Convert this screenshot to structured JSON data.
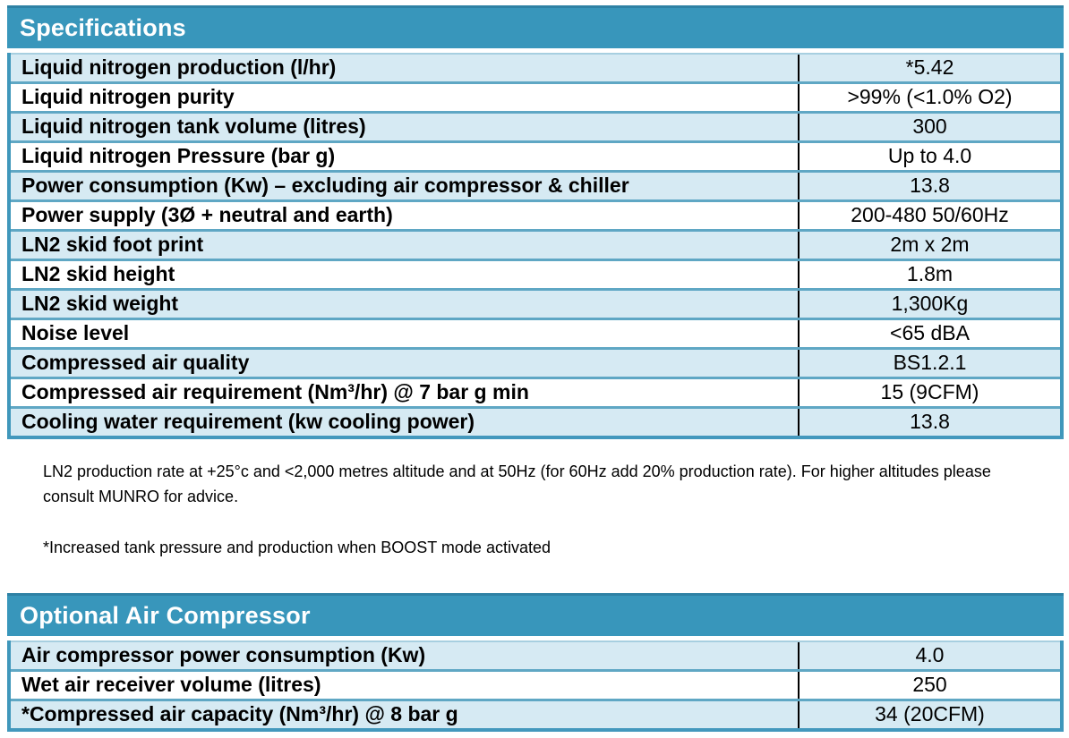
{
  "colors": {
    "header_bg": "#3896bb",
    "header_top_edge": "#2e81a4",
    "row_alt_bg": "#d6eaf3",
    "row_bg": "#ffffff",
    "row_border": "#5fa7c4",
    "outer_border": "#3f97bb",
    "column_divider": "#000000",
    "header_text": "#ffffff",
    "body_text": "#000000"
  },
  "spec_table": {
    "title": "Specifications",
    "rows": [
      {
        "label": "Liquid nitrogen production (l/hr)",
        "value": "*5.42"
      },
      {
        "label": "Liquid nitrogen purity",
        "value": ">99% (<1.0% O2)"
      },
      {
        "label": "Liquid nitrogen tank volume (litres)",
        "value": "300"
      },
      {
        "label": "Liquid nitrogen Pressure (bar g)",
        "value": "Up to 4.0"
      },
      {
        "label": "Power consumption (Kw) – excluding air compressor & chiller",
        "value": "13.8"
      },
      {
        "label": "Power supply (3Ø + neutral and earth)",
        "value": "200-480 50/60Hz"
      },
      {
        "label": "LN2 skid foot print",
        "value": "2m x 2m"
      },
      {
        "label": "LN2 skid height",
        "value": "1.8m"
      },
      {
        "label": "LN2 skid weight",
        "value": "1,300Kg"
      },
      {
        "label": "Noise level",
        "value": "<65 dBA"
      },
      {
        "label": "Compressed air quality",
        "value": "BS1.2.1"
      },
      {
        "label": "Compressed air requirement (Nm³/hr) @ 7 bar g min",
        "value": "15 (9CFM)"
      },
      {
        "label": "Cooling water requirement (kw cooling power)",
        "value": "13.8"
      }
    ]
  },
  "notes": {
    "production_note": "LN2 production rate at +25°c and <2,000 metres altitude and at 50Hz (for 60Hz add 20% production rate). For higher altitudes please consult MUNRO for advice.",
    "boost_note": "*Increased tank pressure and production when BOOST mode activated"
  },
  "compressor_table": {
    "title": "Optional Air Compressor",
    "rows": [
      {
        "label": "Air compressor power consumption (Kw)",
        "value": "4.0"
      },
      {
        "label": "Wet air receiver volume (litres)",
        "value": "250"
      },
      {
        "label": "*Compressed air capacity (Nm³/hr) @ 8 bar g",
        "value": "34 (20CFM)"
      }
    ]
  }
}
